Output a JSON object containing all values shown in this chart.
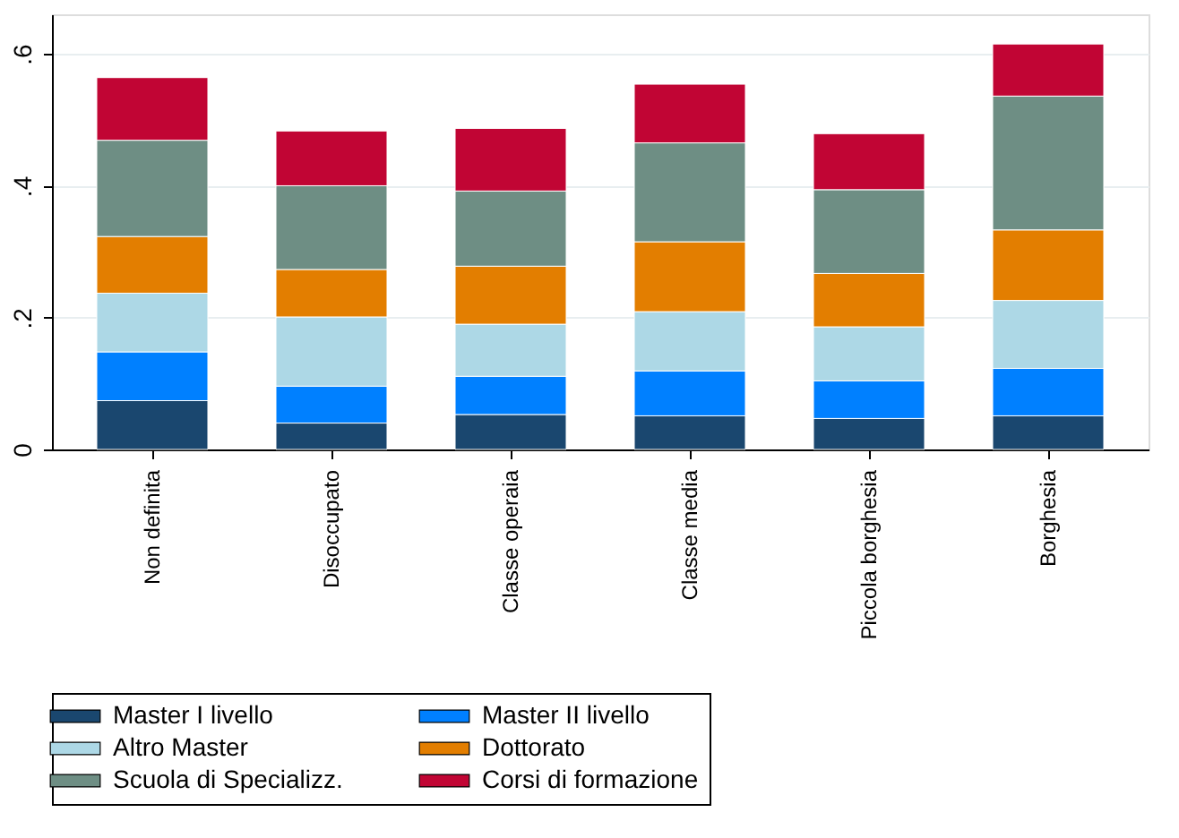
{
  "chart_data": {
    "type": "bar",
    "stacked": true,
    "categories": [
      "Non definita",
      "Disoccupato",
      "Classe operaia",
      "Classe media",
      "Piccola borghesia",
      "Borghesia"
    ],
    "series": [
      {
        "name": "Master I livello",
        "color": "#1a476f",
        "values": [
          0.074,
          0.04,
          0.053,
          0.051,
          0.047,
          0.051
        ]
      },
      {
        "name": "Master II livello",
        "color": "#0080ff",
        "values": [
          0.074,
          0.056,
          0.058,
          0.068,
          0.057,
          0.072
        ]
      },
      {
        "name": "Altro Master",
        "color": "#add8e6",
        "values": [
          0.089,
          0.105,
          0.079,
          0.09,
          0.082,
          0.103
        ]
      },
      {
        "name": "Dottorato",
        "color": "#e37e00",
        "values": [
          0.086,
          0.072,
          0.088,
          0.106,
          0.081,
          0.107
        ]
      },
      {
        "name": "Scuola di Specializz.",
        "color": "#6e8e84",
        "values": [
          0.146,
          0.127,
          0.114,
          0.15,
          0.127,
          0.203
        ]
      },
      {
        "name": "Corsi di formazione",
        "color": "#c10534",
        "values": [
          0.095,
          0.083,
          0.095,
          0.089,
          0.085,
          0.079
        ]
      }
    ],
    "ylim": [
      0,
      0.66
    ],
    "yticks": [
      {
        "value": 0,
        "label": "0"
      },
      {
        "value": 0.2,
        "label": ".2"
      },
      {
        "value": 0.4,
        "label": ".4"
      },
      {
        "value": 0.6,
        "label": ".6"
      }
    ],
    "grid": "y",
    "legend": "bottom"
  }
}
